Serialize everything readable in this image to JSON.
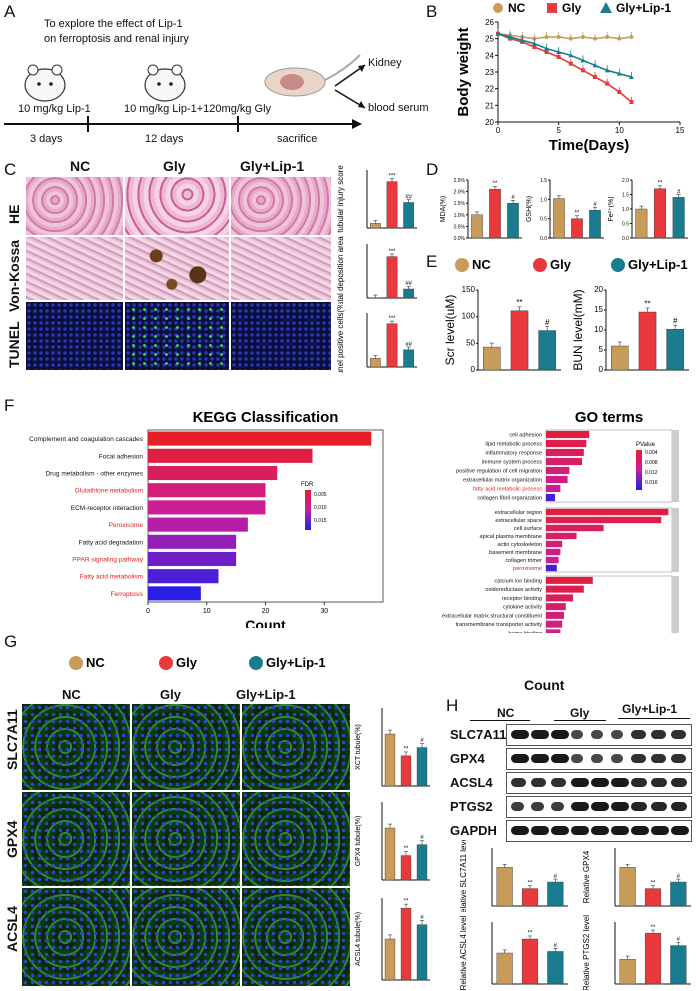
{
  "panels": {
    "A": "A",
    "B": "B",
    "C": "C",
    "D": "D",
    "E": "E",
    "F": "F",
    "G": "G",
    "H": "H"
  },
  "panelA": {
    "title_line1": "To explore  the effect of  Lip-1",
    "title_line2": "on ferroptosis and renal injury",
    "dose1": "10 mg/kg Lip-1",
    "dose2": "10 mg/kg Lip-1+120mg/kg Gly",
    "kidney": "Kidney",
    "serum": "blood serum",
    "t1": "3 days",
    "t2": "12 days",
    "t3": "sacrifice"
  },
  "legend": {
    "nc": "NC",
    "gly": "Gly",
    "gly_lip": "Gly+Lip-1"
  },
  "colors": {
    "nc": "#c89b5a",
    "gly": "#e8393d",
    "gly_lip": "#1a7d8f"
  },
  "panelC": {
    "cols": [
      "NC",
      "Gly",
      "Gly+Lip-1"
    ],
    "rows": [
      "HE",
      "Von-Kossa",
      "TUNEL"
    ]
  },
  "panelF": {
    "kegg_title": "KEGG Classification",
    "go_title": "GO terms",
    "count": "Count",
    "fdr": "FDR",
    "pvalue": "PValue"
  },
  "panelG": {
    "cols": [
      "NC",
      "Gly",
      "Gly+Lip-1"
    ],
    "rows": [
      "SLC7A11",
      "GPX4",
      "ACSL4"
    ]
  },
  "panelH": {
    "groups": [
      "NC",
      "Gly",
      "Gly+Lip-1"
    ],
    "blots": [
      "SLC7A11",
      "GPX4",
      "ACSL4",
      "PTGS2",
      "GAPDH"
    ]
  },
  "chart_data": [
    {
      "id": "B",
      "type": "line",
      "xlabel": "Time(Days)",
      "ylabel": "Body weight",
      "xlim": [
        0,
        15
      ],
      "ylim": [
        20,
        26
      ],
      "xticks": [
        0,
        5,
        10,
        15
      ],
      "yticks": [
        20,
        21,
        22,
        23,
        24,
        25,
        26
      ],
      "series": [
        {
          "name": "NC",
          "x": [
            0,
            1,
            2,
            3,
            4,
            5,
            6,
            7,
            8,
            9,
            10,
            11
          ],
          "values": [
            25.3,
            25.2,
            25.1,
            25.0,
            25.1,
            25.1,
            25.0,
            25.1,
            25.0,
            25.1,
            25.0,
            25.1
          ]
        },
        {
          "name": "Gly",
          "x": [
            0,
            1,
            2,
            3,
            4,
            5,
            6,
            7,
            8,
            9,
            10,
            11
          ],
          "values": [
            25.3,
            25.0,
            24.8,
            24.5,
            24.2,
            23.9,
            23.5,
            23.1,
            22.7,
            22.3,
            21.8,
            21.2
          ]
        },
        {
          "name": "Gly+Lip-1",
          "x": [
            0,
            1,
            2,
            3,
            4,
            5,
            6,
            7,
            8,
            9,
            10,
            11
          ],
          "values": [
            25.3,
            25.1,
            24.9,
            24.7,
            24.4,
            24.2,
            24.0,
            23.7,
            23.4,
            23.1,
            22.9,
            22.7
          ]
        }
      ]
    },
    {
      "id": "C1",
      "type": "bar",
      "ylabel": "tubular injury score",
      "categories": [
        "NC",
        "Gly",
        "Gly+Lip-1"
      ],
      "values": [
        0.4,
        4.0,
        2.2
      ],
      "ymax": 5,
      "sig": [
        "",
        "***",
        "##"
      ]
    },
    {
      "id": "C2",
      "type": "bar",
      "ylabel": "Crystal deposition area(%)",
      "categories": [
        "NC",
        "Gly",
        "Gly+Lip-1"
      ],
      "values": [
        0.05,
        11.5,
        2.5
      ],
      "ymax": 15,
      "sig": [
        "",
        "***",
        "##"
      ]
    },
    {
      "id": "C3",
      "type": "bar",
      "ylabel": "Tunel positive cells(%)",
      "categories": [
        "NC",
        "Gly",
        "Gly+Lip-1"
      ],
      "values": [
        4,
        20,
        8
      ],
      "ymax": 25,
      "sig": [
        "",
        "***",
        "##"
      ]
    },
    {
      "id": "D1",
      "type": "bar",
      "ylabel": "MDA(%)",
      "categories": [
        "NC",
        "Gly",
        "Gly+Lip-1"
      ],
      "values": [
        1.0,
        2.1,
        1.5
      ],
      "ymax": 2.5,
      "yticks": [
        "0.0%",
        "0.5%",
        "1.0%",
        "1.5%",
        "2.0%",
        "2.5%"
      ],
      "sig": [
        "",
        "**",
        "#"
      ]
    },
    {
      "id": "D2",
      "type": "bar",
      "ylabel": "GSH(%)",
      "categories": [
        "NC",
        "Gly",
        "Gly+Lip-1"
      ],
      "values": [
        1.02,
        0.5,
        0.72
      ],
      "ymax": 1.5,
      "yticks": [
        "0.0",
        "0.5",
        "1.0",
        "1.5"
      ],
      "sig": [
        "",
        "**",
        "#"
      ]
    },
    {
      "id": "D3",
      "type": "bar",
      "ylabel": "Fe²⁺(%)",
      "categories": [
        "NC",
        "Gly",
        "Gly+Lip-1"
      ],
      "values": [
        1.0,
        1.7,
        1.4
      ],
      "ymax": 2.0,
      "yticks": [
        "0.0",
        "0.5",
        "1.0",
        "1.5",
        "2.0"
      ],
      "sig": [
        "",
        "**",
        "#"
      ]
    },
    {
      "id": "E1",
      "type": "bar",
      "ylabel": "Scr level(uM)",
      "categories": [
        "NC",
        "Gly",
        "Gly+Lip-1"
      ],
      "values": [
        43,
        111,
        74
      ],
      "ymax": 150,
      "yticks": [
        "0",
        "50",
        "100",
        "150"
      ],
      "sig": [
        "",
        "**",
        "#"
      ]
    },
    {
      "id": "E2",
      "type": "bar",
      "ylabel": "BUN level(mM)",
      "categories": [
        "NC",
        "Gly",
        "Gly+Lip-1"
      ],
      "values": [
        6,
        14.5,
        10.2
      ],
      "ymax": 20,
      "yticks": [
        "0",
        "5",
        "10",
        "15",
        "20"
      ],
      "sig": [
        "",
        "**",
        "#"
      ]
    },
    {
      "id": "F1",
      "type": "bar",
      "orientation": "horizontal",
      "title": "KEGG Classification",
      "xlabel": "Count",
      "xlim": [
        0,
        40
      ],
      "xticks": [
        0,
        10,
        20,
        30
      ],
      "categories": [
        "Complement and coagulation cascades",
        "Focal adhesion",
        "Drug metabolism - other enzymes",
        "Glutathione metabolism",
        "ECM-receptor interaction",
        "Peroxisome",
        "Fatty acid degradation",
        "PPAR signaling pathway",
        "Fatty acid metabolism",
        "Ferroptosis"
      ],
      "values": [
        38,
        28,
        22,
        20,
        20,
        17,
        15,
        15,
        12,
        9
      ],
      "highlight": [
        false,
        false,
        false,
        true,
        false,
        true,
        false,
        true,
        true,
        true
      ],
      "legend_title": "FDR",
      "legend_ticks": [
        "0.005",
        "0.010",
        "0.015"
      ]
    },
    {
      "id": "F2",
      "type": "bar",
      "orientation": "horizontal",
      "title": "GO terms",
      "xlabel": "Count",
      "xlim": [
        0,
        350
      ],
      "xticks": [
        0,
        100,
        200,
        300
      ],
      "groups": [
        {
          "categories": [
            "cell adhesion",
            "lipid metabolic process",
            "inflammatory response",
            "immune system process",
            "positive regulation of cell migration",
            "extracellular matrix organization",
            "fatty acid metabolic process",
            "collagen fibril organization"
          ],
          "values": [
            120,
            112,
            105,
            100,
            65,
            60,
            40,
            25
          ],
          "highlight": [
            false,
            false,
            false,
            false,
            false,
            false,
            true,
            false
          ]
        },
        {
          "categories": [
            "extracellular region",
            "extracellular space",
            "cell surface",
            "apical plasma membrane",
            "actin cytoskeleton",
            "basement membrane",
            "collagen trimer",
            "peroxisome"
          ],
          "values": [
            340,
            320,
            160,
            85,
            45,
            40,
            35,
            30
          ],
          "highlight": [
            false,
            false,
            false,
            false,
            false,
            false,
            false,
            true
          ]
        },
        {
          "categories": [
            "calcium ion binding",
            "oxidoreductase activity",
            "receptor binding",
            "cytokine activity",
            "extracellular matrix structural constituent",
            "transmembrane transporter activity",
            "heme binding",
            "iron ion binding"
          ],
          "values": [
            130,
            105,
            75,
            55,
            50,
            45,
            40,
            35
          ],
          "highlight": [
            false,
            false,
            false,
            false,
            false,
            false,
            false,
            true
          ]
        }
      ],
      "legend_title": "PValue",
      "legend_ticks": [
        "0.004",
        "0.008",
        "0.012",
        "0.016"
      ]
    },
    {
      "id": "G1",
      "type": "bar",
      "ylabel": "XCT tubule(%)",
      "categories": [
        "NC",
        "Gly",
        "Gly+Lip-1"
      ],
      "values": [
        1.0,
        0.58,
        0.74
      ],
      "ymax": 1.5,
      "sig": [
        "",
        "**",
        "#"
      ]
    },
    {
      "id": "G2",
      "type": "bar",
      "ylabel": "GPX4 tubule(%)",
      "categories": [
        "NC",
        "Gly",
        "Gly+Lip-1"
      ],
      "values": [
        1.0,
        0.47,
        0.68
      ],
      "ymax": 1.5,
      "sig": [
        "",
        "**",
        "#"
      ]
    },
    {
      "id": "G3",
      "type": "bar",
      "ylabel": "ACSL4 tubule(%)",
      "categories": [
        "NC",
        "Gly",
        "Gly+Lip-1"
      ],
      "values": [
        1.0,
        1.75,
        1.35
      ],
      "ymax": 2.0,
      "sig": [
        "",
        "**",
        "#"
      ]
    },
    {
      "id": "H1",
      "type": "bar",
      "ylabel": "Relative SLC7A11 level",
      "categories": [
        "NC",
        "Gly",
        "Gly+Lip-1"
      ],
      "values": [
        1.0,
        0.45,
        0.62
      ],
      "ymax": 1.5,
      "sig": [
        "",
        "**",
        "#"
      ]
    },
    {
      "id": "H2",
      "type": "bar",
      "ylabel": "Relative GPX4",
      "categories": [
        "NC",
        "Gly",
        "Gly+Lip-1"
      ],
      "values": [
        1.0,
        0.45,
        0.62
      ],
      "ymax": 1.5,
      "sig": [
        "",
        "**",
        "#"
      ]
    },
    {
      "id": "H3",
      "type": "bar",
      "ylabel": "Relative ACSL4 level",
      "categories": [
        "NC",
        "Gly",
        "Gly+Lip-1"
      ],
      "values": [
        1.0,
        1.45,
        1.05
      ],
      "ymax": 2.0,
      "sig": [
        "",
        "**",
        "#"
      ]
    },
    {
      "id": "H4",
      "type": "bar",
      "ylabel": "Relative PTGS2 level",
      "categories": [
        "NC",
        "Gly",
        "Gly+Lip-1"
      ],
      "values": [
        1.0,
        2.05,
        1.55
      ],
      "ymax": 2.5,
      "sig": [
        "",
        "**",
        "#"
      ]
    }
  ]
}
